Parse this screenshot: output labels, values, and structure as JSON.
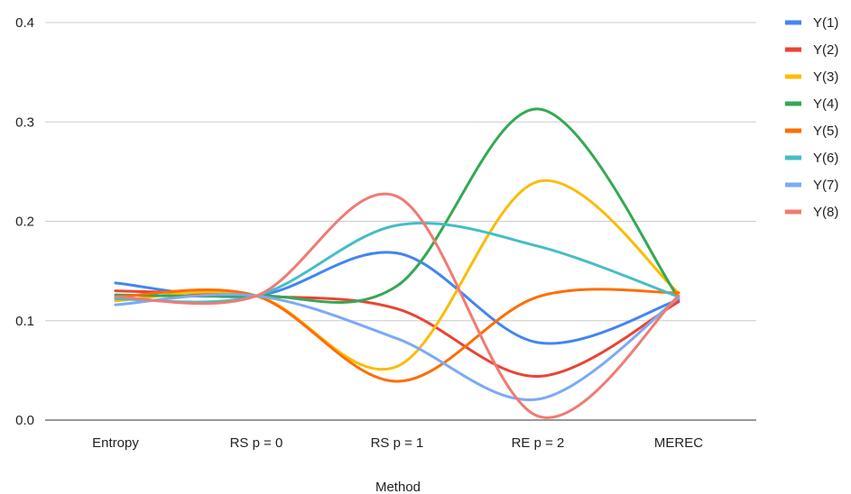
{
  "chart_data": {
    "type": "line",
    "title": "",
    "xlabel": "Method",
    "ylabel": "",
    "categories": [
      "Entropy",
      "RS p = 0",
      "RS p = 1",
      "RE p = 2",
      "MEREC"
    ],
    "ylim": [
      0,
      0.4
    ],
    "yticks": [
      "0.0",
      "0.1",
      "0.2",
      "0.3",
      "0.4"
    ],
    "ytick_values": [
      0,
      0.1,
      0.2,
      0.3,
      0.4
    ],
    "grid": true,
    "smooth": true,
    "legend_position": "right",
    "series": [
      {
        "name": "Y(1)",
        "color": "#4285F4",
        "values": [
          0.138,
          0.125,
          0.168,
          0.078,
          0.121
        ]
      },
      {
        "name": "Y(2)",
        "color": "#EA4335",
        "values": [
          0.13,
          0.125,
          0.112,
          0.044,
          0.119
        ]
      },
      {
        "name": "Y(3)",
        "color": "#FBBC04",
        "values": [
          0.12,
          0.125,
          0.054,
          0.24,
          0.128
        ]
      },
      {
        "name": "Y(4)",
        "color": "#34A853",
        "values": [
          0.126,
          0.125,
          0.135,
          0.313,
          0.123
        ]
      },
      {
        "name": "Y(5)",
        "color": "#FF6D01",
        "values": [
          0.124,
          0.125,
          0.039,
          0.124,
          0.128
        ]
      },
      {
        "name": "Y(6)",
        "color": "#46BDC6",
        "values": [
          0.122,
          0.125,
          0.196,
          0.175,
          0.124
        ]
      },
      {
        "name": "Y(7)",
        "color": "#7BAAF7",
        "values": [
          0.116,
          0.125,
          0.082,
          0.021,
          0.123
        ]
      },
      {
        "name": "Y(8)",
        "color": "#F07B72",
        "values": [
          0.124,
          0.125,
          0.225,
          0.004,
          0.125
        ]
      }
    ]
  }
}
